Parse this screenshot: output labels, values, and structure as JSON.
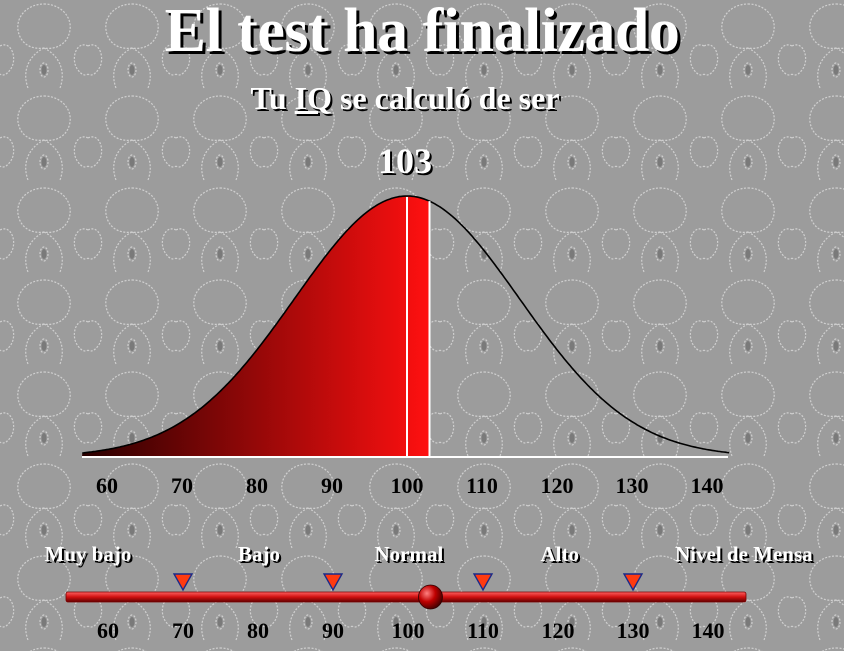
{
  "title": "El test ha finalizado",
  "subtitle": {
    "prefix": "Tu ",
    "iq": "IQ",
    "suffix": " se calculó de ser"
  },
  "score": "103",
  "result_value": 103,
  "chart_data": {
    "type": "area",
    "distribution": "normal",
    "mean": 100,
    "sd": 15,
    "x_range": [
      57,
      143
    ],
    "x_ticks": [
      60,
      70,
      80,
      90,
      100,
      110,
      120,
      130,
      140
    ],
    "x_tick_labels": [
      "60",
      "70",
      "80",
      "90",
      "100",
      "110",
      "120",
      "130",
      "140"
    ],
    "shaded_to": 103,
    "marker_at": 100,
    "fill_gradient": [
      "#2a0000",
      "#ff1010"
    ],
    "line_color": "#000000"
  },
  "scale": {
    "min": 57,
    "max": 145,
    "ticks": [
      60,
      70,
      80,
      90,
      100,
      110,
      120,
      130,
      140
    ],
    "tick_labels": [
      "60",
      "70",
      "80",
      "90",
      "100",
      "110",
      "120",
      "130",
      "140"
    ],
    "boundaries": [
      70,
      90,
      110,
      130
    ],
    "categories": [
      {
        "label": "Muy bajo"
      },
      {
        "label": "Bajo"
      },
      {
        "label": "Normal"
      },
      {
        "label": "Alto"
      },
      {
        "label": "Nivel de Mensa"
      }
    ],
    "colors": {
      "bar": "#e02020",
      "bar_dark": "#7a0000",
      "marker_fill": "#ff3a10",
      "marker_stroke": "#1a2a8a",
      "knob": "#c00000"
    }
  }
}
